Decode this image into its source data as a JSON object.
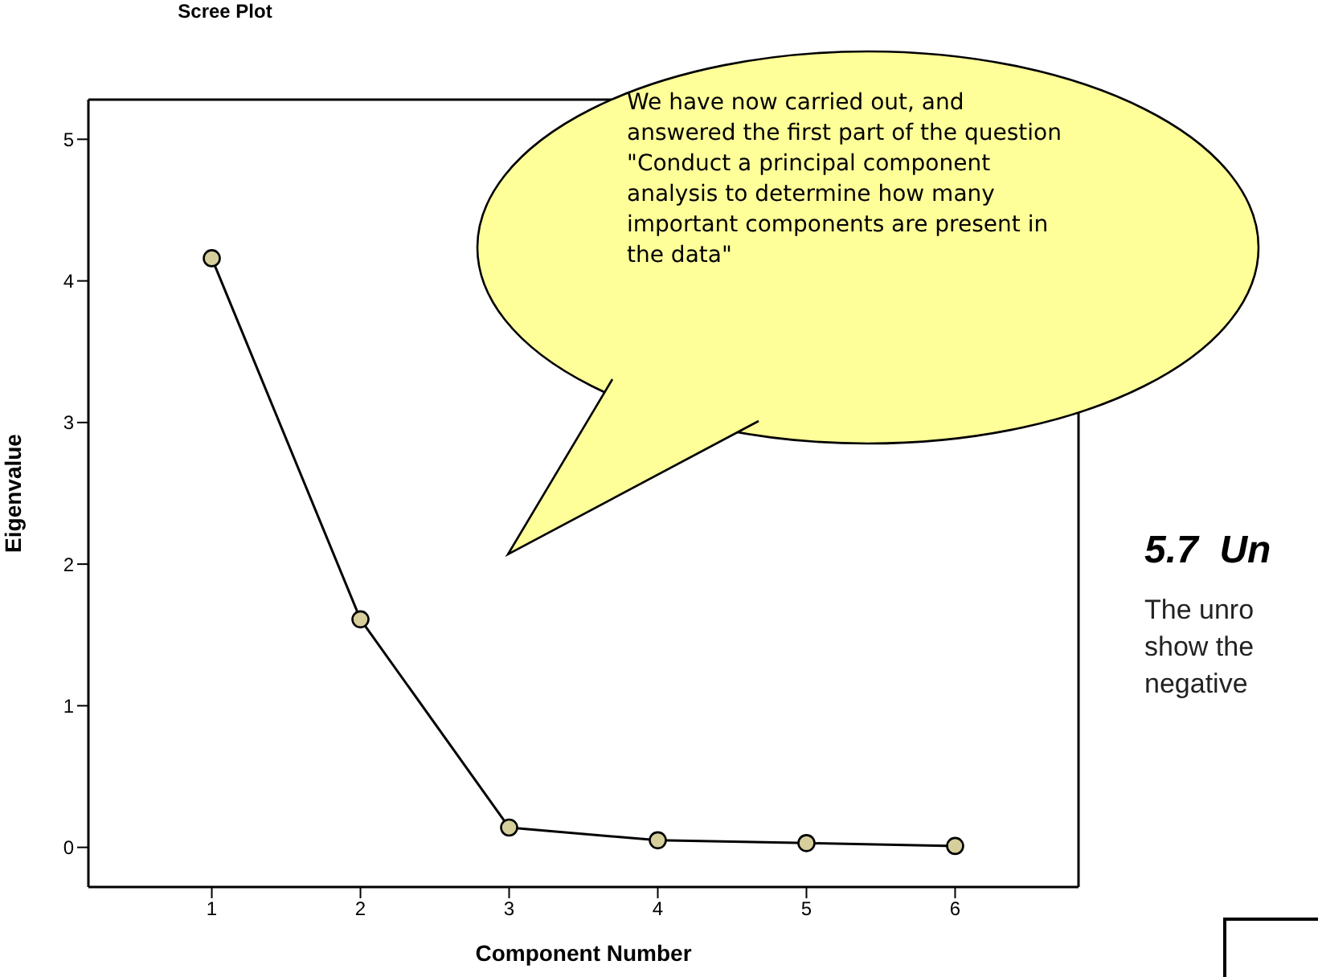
{
  "chart_data": {
    "type": "line",
    "title": "Scree Plot",
    "xlabel": "Component Number",
    "ylabel": "Eigenvalue",
    "x": [
      1,
      2,
      3,
      4,
      5,
      6
    ],
    "values": [
      4.16,
      1.61,
      0.14,
      0.05,
      0.03,
      0.01
    ],
    "color": "#000000",
    "marker": "circle",
    "xlim": [
      0.17,
      6.83
    ],
    "ylim": [
      -0.28,
      5.28
    ],
    "xticks": [
      1,
      2,
      3,
      4,
      5,
      6
    ],
    "yticks": [
      0,
      1,
      2,
      3,
      4,
      5
    ],
    "annotations": [
      "We have now carried out, and answered the first part of the question \"Conduct a principal component analysis to determine how many important components are present in the data\"",
      "5.7  Un",
      "The unro",
      "show the",
      "negative"
    ]
  }
}
